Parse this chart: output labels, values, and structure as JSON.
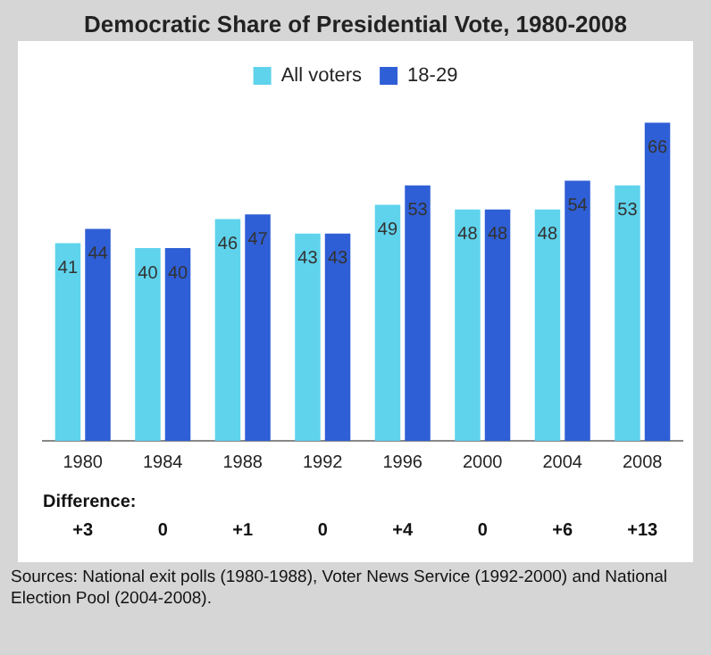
{
  "chart_data": {
    "type": "bar",
    "title": "Democratic Share of Presidential Vote, 1980-2008",
    "categories": [
      "1980",
      "1984",
      "1988",
      "1992",
      "1996",
      "2000",
      "2004",
      "2008"
    ],
    "series": [
      {
        "name": "All voters",
        "color": "#5fd3ec",
        "values": [
          41,
          40,
          46,
          43,
          49,
          48,
          48,
          53
        ]
      },
      {
        "name": "18-29",
        "color": "#2f5fd6",
        "values": [
          44,
          40,
          47,
          43,
          53,
          48,
          54,
          66
        ]
      }
    ],
    "tick_labels": "x",
    "grid": false,
    "legend": "top left",
    "data_labels": true,
    "annotations": [
      "Difference:",
      "+3",
      "0",
      "+1",
      "0",
      "+4",
      "0",
      "+6",
      "+13",
      "Sources: National exit polls (1980-1988), Voter News Service (1992-2000) and National Election Pool (2004-2008)."
    ]
  }
}
